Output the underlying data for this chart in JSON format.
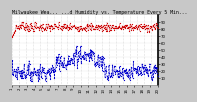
{
  "title": "Milwaukee Wea... ...d Humidity vs. Temperature Every 5 Min...",
  "bg_color": "#c8c8c8",
  "plot_bg_color": "#ffffff",
  "grid_color": "#c0c0c0",
  "temp_color": "#cc0000",
  "humidity_color": "#0000cc",
  "right_axis_color": "#000000",
  "marker_size": 1.8,
  "linewidth": 0.5,
  "title_fontsize": 3.5,
  "tick_fontsize": 2.8,
  "ylim": [
    0,
    100
  ],
  "yticks": [
    10,
    20,
    30,
    40,
    50,
    60,
    70,
    80,
    90
  ],
  "n_points": 300,
  "temp_mean": 82,
  "temp_std": 3,
  "humidity_mean": 18,
  "humidity_std": 6
}
